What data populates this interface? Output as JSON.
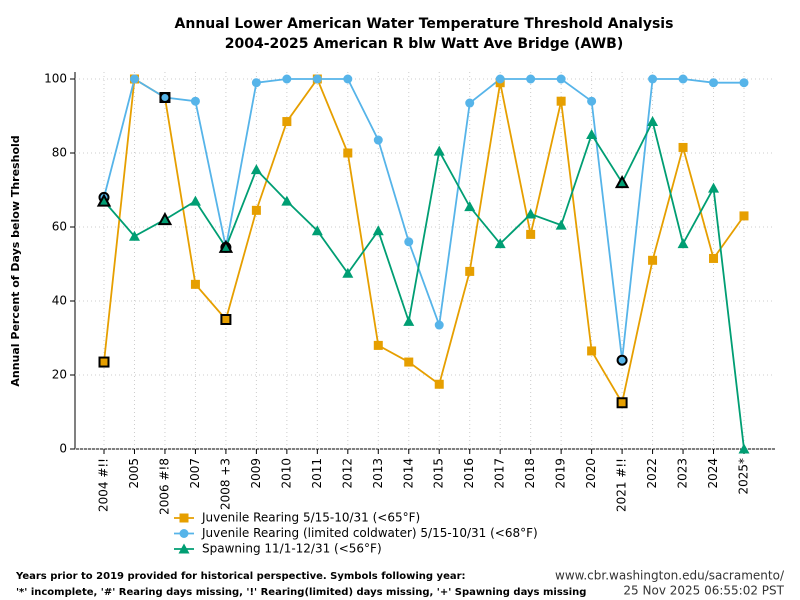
{
  "chart_data": {
    "type": "line",
    "title": "Annual Lower American Water Temperature Threshold Analysis",
    "subtitle": "2004-2025 American R blw Watt Ave Bridge (AWB)",
    "y_label": "Annual Percent of Days below Threshold",
    "categories": [
      "2004 #!!",
      "2005",
      "2006 #!8",
      "2007",
      "2008 +3",
      "2009",
      "2010",
      "2011",
      "2012",
      "2013",
      "2014",
      "2015",
      "2016",
      "2017",
      "2018",
      "2019",
      "2020",
      "2021 #!!",
      "2022",
      "2023",
      "2024",
      "2025*"
    ],
    "series": [
      {
        "name": "Juvenile Rearing 5/15-10/31 (<65°F)",
        "color": "#E69F00",
        "marker": "square",
        "values": [
          23.5,
          100,
          95,
          44.5,
          35,
          64.5,
          88.5,
          100,
          80,
          28,
          23.5,
          17.5,
          48,
          99,
          58,
          94,
          26.5,
          12.5,
          51,
          81.5,
          51.5,
          63
        ]
      },
      {
        "name": "Juvenile Rearing (limited coldwater) 5/15-10/31 (<68°F)",
        "color": "#56B4E9",
        "marker": "circle",
        "values": [
          68,
          100,
          95,
          94,
          54.5,
          99,
          100,
          100,
          100,
          83.5,
          56,
          33.5,
          93.5,
          100,
          100,
          100,
          94,
          24,
          100,
          100,
          99,
          99
        ]
      },
      {
        "name": "Spawning 11/1-12/31 (<56°F)",
        "color": "#009E73",
        "marker": "triangle",
        "values": [
          67,
          57.5,
          62,
          67,
          54.5,
          75.5,
          67,
          59,
          47.5,
          59,
          34.5,
          80.5,
          65.5,
          55.5,
          63.5,
          60.5,
          85,
          72,
          88.5,
          55.5,
          70.5,
          0
        ]
      }
    ],
    "ylim": [
      0,
      100
    ],
    "yticks": [
      0,
      20,
      40,
      60,
      80,
      100
    ],
    "grid": true,
    "footnote": [
      "Years prior to 2019 provided for historical perspective. Symbols following year:",
      "'*' incomplete, '#' Rearing days missing, '!' Rearing(limited) days missing, '+' Spawning days missing"
    ],
    "source": [
      "www.cbr.washington.edu/sacramento/",
      "25 Nov 2025 06:55:02 PST"
    ]
  }
}
